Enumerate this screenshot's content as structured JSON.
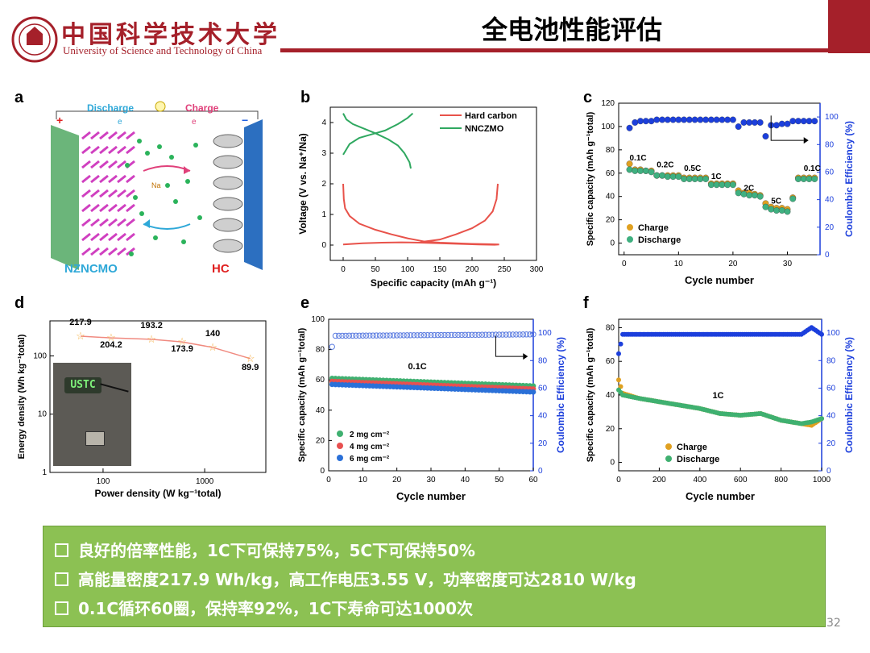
{
  "header": {
    "logo_cn": "中国科学技术大学",
    "logo_en": "University of Science and Technology of China",
    "title": "全电池性能评估",
    "page_number": "32",
    "colors": {
      "accent": "#a5202a"
    }
  },
  "panels": {
    "a": "a",
    "b": "b",
    "c": "c",
    "d": "d",
    "e": "e",
    "f": "f"
  },
  "schematic": {
    "discharge": "Discharge",
    "charge": "Charge",
    "e1": "e",
    "e2": "e",
    "ion": "Na",
    "plus": "+",
    "minus": "−",
    "cathode": "NZNCMO",
    "anode": "HC"
  },
  "photo": {
    "led_text": "USTC"
  },
  "summary": {
    "line1": "良好的倍率性能，1C下可保持75%，5C下可保持50%",
    "line2": "高能量密度217.9 Wh/kg，高工作电压3.55 V，功率密度可达2810 W/kg",
    "line3": "0.1C循环60圈，保持率92%，1C下寿命可达1000次",
    "bg_color": "#8cc153"
  },
  "chart_data": [
    {
      "id": "b",
      "type": "line",
      "xlabel": "Specific capacity (mAh g⁻¹)",
      "ylabel": "Voltage (V vs. Na⁺/Na)",
      "xlim": [
        -20,
        300
      ],
      "ylim": [
        -0.5,
        4.5
      ],
      "xticks": [
        0,
        50,
        100,
        150,
        200,
        250,
        300
      ],
      "yticks": [
        0,
        1,
        2,
        3,
        4
      ],
      "series": [
        {
          "name": "Hard carbon",
          "color": "#e8524a",
          "points": [
            [
              0,
              2.0
            ],
            [
              1,
              1.5
            ],
            [
              3,
              1.2
            ],
            [
              10,
              0.95
            ],
            [
              25,
              0.7
            ],
            [
              50,
              0.5
            ],
            [
              75,
              0.35
            ],
            [
              100,
              0.22
            ],
            [
              125,
              0.12
            ],
            [
              150,
              0.08
            ],
            [
              175,
              0.06
            ],
            [
              200,
              0.04
            ],
            [
              225,
              0.03
            ],
            [
              242,
              0.02
            ],
            [
              235,
              0.01
            ],
            [
              210,
              0.02
            ],
            [
              180,
              0.04
            ],
            [
              150,
              0.06
            ],
            [
              120,
              0.08
            ],
            [
              90,
              0.09
            ],
            [
              60,
              0.08
            ],
            [
              30,
              0.06
            ],
            [
              15,
              0.04
            ],
            [
              0,
              0.02
            ],
            [
              0,
              0.02
            ],
            [
              120,
              0.1
            ],
            [
              150,
              0.18
            ],
            [
              175,
              0.35
            ],
            [
              200,
              0.55
            ],
            [
              220,
              0.8
            ],
            [
              232,
              1.1
            ],
            [
              238,
              1.5
            ],
            [
              240,
              2.0
            ]
          ]
        },
        {
          "name": "NNCZMO",
          "color": "#2fa860",
          "points": [
            [
              0,
              2.95
            ],
            [
              10,
              3.3
            ],
            [
              25,
              3.5
            ],
            [
              45,
              3.62
            ],
            [
              65,
              3.74
            ],
            [
              85,
              3.95
            ],
            [
              100,
              4.15
            ],
            [
              108,
              4.3
            ],
            [
              0,
              4.3
            ],
            [
              5,
              4.1
            ],
            [
              15,
              3.95
            ],
            [
              30,
              3.82
            ],
            [
              50,
              3.65
            ],
            [
              70,
              3.45
            ],
            [
              85,
              3.25
            ],
            [
              95,
              3.0
            ],
            [
              103,
              2.7
            ],
            [
              105,
              2.5
            ]
          ]
        }
      ]
    },
    {
      "id": "c",
      "type": "scatter",
      "xlabel": "Cycle number",
      "ylabel": "Specific capacity (mAh g⁻¹total)",
      "y2label": "Coulombic Efficiency (%)",
      "xlim": [
        -1,
        36
      ],
      "ylim": [
        -10,
        120
      ],
      "y2lim": [
        0,
        110
      ],
      "xticks": [
        0,
        10,
        20,
        30
      ],
      "yticks": [
        0,
        20,
        40,
        60,
        80,
        100,
        120
      ],
      "y2ticks": [
        0,
        20,
        40,
        60,
        80,
        100
      ],
      "rate_labels": [
        {
          "x": 1,
          "y": 71,
          "text": "0.1C"
        },
        {
          "x": 6,
          "y": 65,
          "text": "0.2C"
        },
        {
          "x": 11,
          "y": 62,
          "text": "0.5C"
        },
        {
          "x": 16,
          "y": 55,
          "text": "1C"
        },
        {
          "x": 22,
          "y": 45,
          "text": "2C"
        },
        {
          "x": 27,
          "y": 34,
          "text": "5C"
        },
        {
          "x": 33,
          "y": 62,
          "text": "0.1C"
        }
      ],
      "series": [
        {
          "name": "Charge",
          "color": "#e0a020",
          "cycles": [
            1,
            2,
            3,
            4,
            5,
            6,
            7,
            8,
            9,
            10,
            11,
            12,
            13,
            14,
            15,
            16,
            17,
            18,
            19,
            20,
            21,
            22,
            23,
            24,
            25,
            26,
            27,
            28,
            29,
            30,
            31,
            32,
            33,
            34,
            35
          ],
          "values": [
            68,
            63,
            63,
            62,
            62,
            58,
            58,
            58,
            58,
            58,
            56,
            56,
            56,
            56,
            56,
            51,
            51,
            51,
            51,
            51,
            45,
            43,
            43,
            42,
            41,
            34,
            31,
            30,
            30,
            29,
            39,
            56,
            56,
            56,
            56
          ]
        },
        {
          "name": "Discharge",
          "color": "#3fb080",
          "cycles": [
            1,
            2,
            3,
            4,
            5,
            6,
            7,
            8,
            9,
            10,
            11,
            12,
            13,
            14,
            15,
            16,
            17,
            18,
            19,
            20,
            21,
            22,
            23,
            24,
            25,
            26,
            27,
            28,
            29,
            30,
            31,
            32,
            33,
            34,
            35
          ],
          "values": [
            63,
            62,
            62,
            62,
            61,
            58,
            58,
            57,
            57,
            57,
            55,
            55,
            55,
            55,
            55,
            50,
            50,
            50,
            50,
            50,
            43,
            42,
            41,
            41,
            40,
            31,
            29,
            28,
            28,
            27,
            38,
            55,
            55,
            55,
            55
          ]
        },
        {
          "name": "Coulombic Efficiency",
          "axis": "y2",
          "color": "#1c3fdc",
          "cycles": [
            1,
            2,
            3,
            4,
            5,
            6,
            7,
            8,
            9,
            10,
            11,
            12,
            13,
            14,
            15,
            16,
            17,
            18,
            19,
            20,
            21,
            22,
            23,
            24,
            25,
            26,
            27,
            28,
            29,
            30,
            31,
            32,
            33,
            34,
            35
          ],
          "values": [
            92,
            96,
            97,
            97,
            97,
            98,
            98,
            98,
            98,
            98,
            98,
            98,
            98,
            98,
            98,
            98,
            98,
            98,
            98,
            98,
            93,
            96,
            96,
            96,
            96,
            86,
            94,
            94,
            95,
            95,
            97,
            97,
            97,
            97,
            97
          ]
        }
      ]
    },
    {
      "id": "d",
      "type": "line",
      "xlabel": "Power density (W kg⁻¹total)",
      "ylabel": "Energy density (Wh kg⁻¹total)",
      "xscale": "log",
      "yscale": "log",
      "xlim": [
        30,
        4000
      ],
      "ylim": [
        1,
        400
      ],
      "xticks": [
        100,
        1000
      ],
      "yticks": [
        1,
        10,
        100
      ],
      "series": [
        {
          "name": "",
          "color": "#f08a80",
          "marker": "star",
          "x": [
            60,
            120,
            300,
            600,
            1200,
            2810
          ],
          "y": [
            217.9,
            204.2,
            193.2,
            173.9,
            140,
            89.9
          ]
        }
      ],
      "point_labels": [
        "217.9",
        "204.2",
        "193.2",
        "173.9",
        "140",
        "89.9"
      ]
    },
    {
      "id": "e",
      "type": "scatter",
      "xlabel": "Cycle number",
      "ylabel": "Specific capacity (mAh g⁻¹total)",
      "y2label": "Coulombic Efficiency (%)",
      "annotation": "0.1C",
      "xlim": [
        0,
        60
      ],
      "ylim": [
        0,
        100
      ],
      "y2lim": [
        0,
        110
      ],
      "xticks": [
        0,
        10,
        20,
        30,
        40,
        50,
        60
      ],
      "yticks": [
        0,
        20,
        40,
        60,
        80,
        100
      ],
      "y2ticks": [
        0,
        20,
        40,
        60,
        80,
        100
      ],
      "series": [
        {
          "name": "2 mg cm⁻²",
          "color": "#3fb070",
          "start": 61,
          "end": 56
        },
        {
          "name": "4 mg cm⁻²",
          "color": "#e85050",
          "start": 59,
          "end": 54
        },
        {
          "name": "6 mg cm⁻²",
          "color": "#2a70d8",
          "start": 57,
          "end": 52
        },
        {
          "name": "Coulombic Efficiency",
          "axis": "y2",
          "color": "#5a7be0",
          "start": 98,
          "end": 99,
          "first": 90
        }
      ]
    },
    {
      "id": "f",
      "type": "scatter",
      "xlabel": "Cycle number",
      "ylabel": "Specific capacity (mAh g⁻¹total)",
      "y2label": "Coulombic Efficiency (%)",
      "annotation": "1C",
      "xlim": [
        0,
        1000
      ],
      "ylim": [
        -5,
        85
      ],
      "y2lim": [
        0,
        110
      ],
      "xticks": [
        0,
        200,
        400,
        600,
        800,
        1000
      ],
      "yticks": [
        0,
        20,
        40,
        60,
        80
      ],
      "y2ticks": [
        0,
        20,
        40,
        60,
        80,
        100
      ],
      "series": [
        {
          "name": "Charge",
          "color": "#e0a020",
          "x": [
            0,
            20,
            100,
            200,
            300,
            400,
            500,
            600,
            700,
            800,
            900,
            950,
            1000
          ],
          "values": [
            49,
            41,
            38,
            36,
            34,
            32,
            29,
            28,
            29,
            25,
            23,
            22,
            26
          ]
        },
        {
          "name": "Discharge",
          "color": "#3fb070",
          "x": [
            0,
            20,
            100,
            200,
            300,
            400,
            500,
            600,
            700,
            800,
            900,
            950,
            1000
          ],
          "values": [
            43,
            40,
            38,
            36,
            34,
            32,
            29,
            28,
            29,
            25,
            23,
            24,
            26
          ]
        },
        {
          "name": "Coulombic Efficiency",
          "axis": "y2",
          "color": "#1c3fdc",
          "x": [
            0,
            20,
            100,
            200,
            300,
            400,
            500,
            600,
            700,
            800,
            900,
            950,
            1000
          ],
          "values": [
            85,
            99,
            99,
            99,
            99,
            99,
            99,
            99,
            99,
            99,
            99,
            104,
            99
          ]
        }
      ]
    }
  ]
}
